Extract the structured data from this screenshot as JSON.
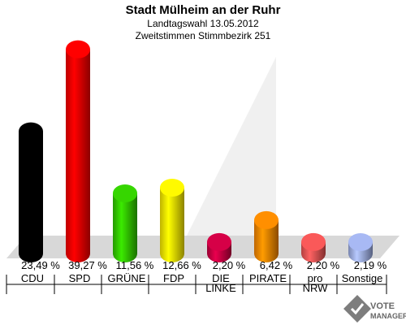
{
  "header": {
    "title": "Stadt Mülheim an der Ruhr",
    "subtitle1": "Landtagswahl 13.05.2012",
    "subtitle2": "Zweitstimmen Stimmbezirk 251"
  },
  "logo": {
    "text": "VOTE MANAGER",
    "icon": "vote-manager-checkmark-icon"
  },
  "chart_data": {
    "type": "bar",
    "title": "Stadt Mülheim an der Ruhr",
    "subtitle": "Landtagswahl 13.05.2012 · Zweitstimmen Stimmbezirk 251",
    "xlabel": "",
    "ylabel": "",
    "ylim": [
      0,
      40
    ],
    "grid": false,
    "legend": "none",
    "categories": [
      "CDU",
      "SPD",
      "GRÜNE",
      "FDP",
      "DIE LINKE",
      "PIRATE",
      "pro NRW",
      "Sonstige"
    ],
    "category_lines": [
      [
        "CDU"
      ],
      [
        "SPD"
      ],
      [
        "GRÜNE"
      ],
      [
        "FDP"
      ],
      [
        "DIE",
        "LINKE"
      ],
      [
        "PIRATE"
      ],
      [
        "pro",
        "NRW"
      ],
      [
        "Sonstige"
      ]
    ],
    "values": [
      23.49,
      39.27,
      11.56,
      12.66,
      2.2,
      6.42,
      2.2,
      2.19
    ],
    "value_labels": [
      "23,49 %",
      "39,27 %",
      "11,56 %",
      "12,66 %",
      "2,20 %",
      "6,42 %",
      "2,20 %",
      "2,19 %"
    ],
    "colors": [
      "#000000",
      "#ff0000",
      "#33cc00",
      "#ffee00",
      "#cc0044",
      "#ff8800",
      "#ee5555",
      "#a0b0e8"
    ]
  }
}
